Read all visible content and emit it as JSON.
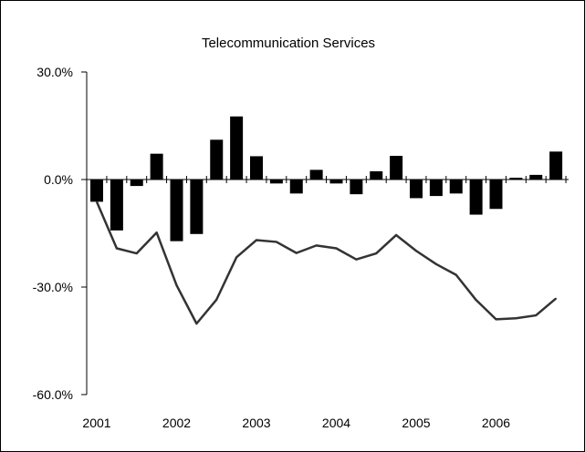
{
  "chart_data": {
    "type": "bar+line",
    "title": "Telecommunication Services",
    "xlabel": "",
    "ylabel": "",
    "ylim": [
      -0.6,
      0.3
    ],
    "yticks": [
      {
        "value": 0.3,
        "label": "30.0%"
      },
      {
        "value": 0.0,
        "label": "0.0%"
      },
      {
        "value": -0.3,
        "label": "-30.0%"
      },
      {
        "value": -0.6,
        "label": "-60.0%"
      }
    ],
    "xlim": [
      2001.0,
      2006.75
    ],
    "xticks": [
      {
        "value": 2001,
        "label": "2001"
      },
      {
        "value": 2002,
        "label": "2002"
      },
      {
        "value": 2003,
        "label": "2003"
      },
      {
        "value": 2004,
        "label": "2004"
      },
      {
        "value": 2005,
        "label": "2005"
      },
      {
        "value": 2006,
        "label": "2006"
      }
    ],
    "grid": false,
    "legend": "none",
    "colors": {
      "bars": "#000000",
      "line": "#333333",
      "axis": "#000000"
    },
    "series": [
      {
        "kind": "bar",
        "x": [
          2001.0,
          2001.25,
          2001.5,
          2001.75,
          2002.0,
          2002.25,
          2002.5,
          2002.75,
          2003.0,
          2003.25,
          2003.5,
          2003.75,
          2004.0,
          2004.25,
          2004.5,
          2004.75,
          2005.0,
          2005.25,
          2005.5,
          2005.75,
          2006.0,
          2006.25,
          2006.5,
          2006.75
        ],
        "values": [
          -0.062,
          -0.142,
          -0.018,
          0.072,
          -0.172,
          -0.152,
          0.111,
          0.176,
          0.065,
          -0.011,
          -0.039,
          0.027,
          -0.011,
          -0.041,
          0.023,
          0.066,
          -0.052,
          -0.046,
          -0.039,
          -0.098,
          -0.082,
          0.005,
          0.013,
          0.078
        ]
      },
      {
        "kind": "line",
        "x": [
          2001.0,
          2001.25,
          2001.5,
          2001.75,
          2002.0,
          2002.25,
          2002.5,
          2002.75,
          2003.0,
          2003.25,
          2003.5,
          2003.75,
          2004.0,
          2004.25,
          2004.5,
          2004.75,
          2005.0,
          2005.25,
          2005.5,
          2005.75,
          2006.0,
          2006.25,
          2006.5,
          2006.75
        ],
        "values": [
          -0.062,
          -0.192,
          -0.206,
          -0.148,
          -0.295,
          -0.402,
          -0.335,
          -0.217,
          -0.169,
          -0.174,
          -0.205,
          -0.184,
          -0.192,
          -0.223,
          -0.206,
          -0.155,
          -0.199,
          -0.236,
          -0.266,
          -0.336,
          -0.39,
          -0.387,
          -0.379,
          -0.332
        ]
      }
    ]
  }
}
